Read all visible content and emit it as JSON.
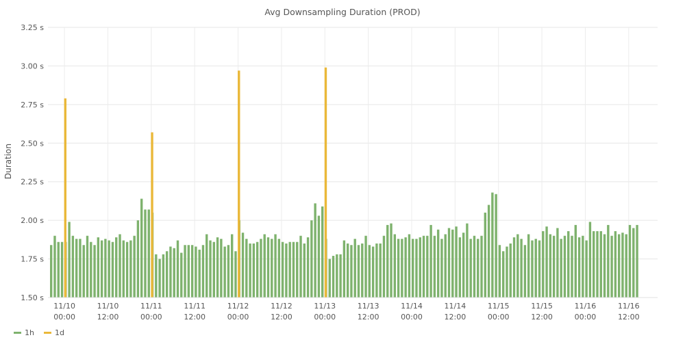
{
  "chart_data": {
    "type": "bar",
    "title": "Avg Downsampling Duration (PROD)",
    "ylabel": "Duration",
    "xlabel": "",
    "ylim": [
      1.5,
      3.25
    ],
    "y_ticks": [
      "1.50 s",
      "1.75 s",
      "2.00 s",
      "2.25 s",
      "2.50 s",
      "2.75 s",
      "3.00 s",
      "3.25 s"
    ],
    "x_ticks": [
      [
        "11/10",
        "00:00"
      ],
      [
        "11/10",
        "12:00"
      ],
      [
        "11/11",
        "00:00"
      ],
      [
        "11/11",
        "12:00"
      ],
      [
        "11/12",
        "00:00"
      ],
      [
        "11/12",
        "12:00"
      ],
      [
        "11/13",
        "00:00"
      ],
      [
        "11/13",
        "12:00"
      ],
      [
        "11/14",
        "00:00"
      ],
      [
        "11/14",
        "12:00"
      ],
      [
        "11/15",
        "00:00"
      ],
      [
        "11/15",
        "12:00"
      ],
      [
        "11/16",
        "00:00"
      ],
      [
        "11/16",
        "12:00"
      ]
    ],
    "x_range": [
      "11/09 20:00",
      "11/16 15:00"
    ],
    "grid": true,
    "legend_position": "bottom-left",
    "series": [
      {
        "name": "1h",
        "color": "#7EB26D",
        "x_start": "11/09 20:00",
        "interval_hours": 1,
        "values": [
          1.84,
          1.9,
          1.86,
          1.86,
          1.86,
          1.99,
          1.9,
          1.88,
          1.88,
          1.84,
          1.9,
          1.86,
          1.84,
          1.89,
          1.87,
          1.88,
          1.87,
          1.86,
          1.89,
          1.91,
          1.87,
          1.86,
          1.87,
          1.9,
          2.0,
          2.14,
          2.07,
          2.07,
          2.05,
          1.78,
          1.75,
          1.78,
          1.8,
          1.83,
          1.82,
          1.87,
          1.79,
          1.84,
          1.84,
          1.84,
          1.83,
          1.81,
          1.84,
          1.91,
          1.87,
          1.86,
          1.89,
          1.88,
          1.83,
          1.84,
          1.91,
          1.8,
          2.0,
          1.92,
          1.88,
          1.85,
          1.85,
          1.86,
          1.88,
          1.91,
          1.89,
          1.88,
          1.91,
          1.88,
          1.86,
          1.85,
          1.86,
          1.86,
          1.86,
          1.9,
          1.85,
          1.89,
          2.0,
          2.11,
          2.03,
          2.09,
          1.88,
          1.75,
          1.77,
          1.78,
          1.78,
          1.87,
          1.85,
          1.84,
          1.88,
          1.84,
          1.85,
          1.9,
          1.84,
          1.83,
          1.85,
          1.85,
          1.9,
          1.97,
          1.98,
          1.91,
          1.88,
          1.88,
          1.89,
          1.91,
          1.88,
          1.88,
          1.89,
          1.9,
          1.9,
          1.97,
          1.9,
          1.94,
          1.88,
          1.91,
          1.95,
          1.94,
          1.96,
          1.89,
          1.92,
          1.98,
          1.88,
          1.9,
          1.88,
          1.9,
          2.05,
          2.1,
          2.18,
          2.17,
          1.84,
          1.8,
          1.83,
          1.85,
          1.89,
          1.91,
          1.88,
          1.84,
          1.91,
          1.87,
          1.88,
          1.87,
          1.93,
          1.96,
          1.91,
          1.9,
          1.95,
          1.88,
          1.9,
          1.93,
          1.9,
          1.97,
          1.89,
          1.9,
          1.87,
          1.99,
          1.93,
          1.93,
          1.93,
          1.91,
          1.97,
          1.9,
          1.93,
          1.91,
          1.92,
          1.91,
          1.97,
          1.95,
          1.97
        ]
      },
      {
        "name": "1d",
        "color": "#EAB839",
        "points": [
          {
            "x": "11/10 00:00",
            "y": 2.79
          },
          {
            "x": "11/11 00:00",
            "y": 2.57
          },
          {
            "x": "11/12 00:00",
            "y": 2.97
          },
          {
            "x": "11/13 00:00",
            "y": 2.99
          }
        ]
      }
    ]
  }
}
